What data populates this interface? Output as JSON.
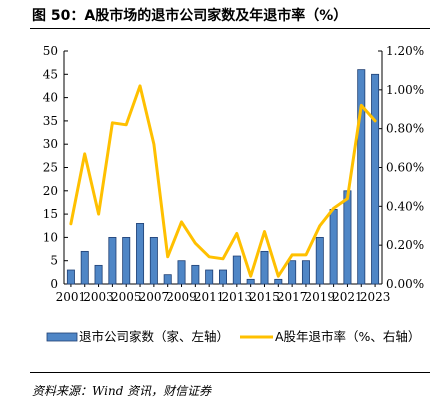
{
  "title": "图 50：A股市场的退市公司家数及年退市率（%）",
  "source": "资料来源：Wind 资讯，财信证券",
  "chart_data": {
    "type": "bar",
    "title": "图 50：A股市场的退市公司家数及年退市率（%）",
    "x": [
      2001,
      2002,
      2003,
      2004,
      2005,
      2006,
      2007,
      2008,
      2009,
      2010,
      2011,
      2012,
      2013,
      2014,
      2015,
      2016,
      2017,
      2018,
      2019,
      2020,
      2021,
      2022,
      2023
    ],
    "x_tick_labels": [
      "2001",
      "2003",
      "2005",
      "2007",
      "2009",
      "2011",
      "2013",
      "2015",
      "2017",
      "2019",
      "2021",
      "2023"
    ],
    "y_left_ticks": [
      "0",
      "5",
      "10",
      "15",
      "20",
      "25",
      "30",
      "35",
      "40",
      "45",
      "50"
    ],
    "y_right_ticks": [
      "0.00%",
      "0.20%",
      "0.40%",
      "0.60%",
      "0.80%",
      "1.00%",
      "1.20%"
    ],
    "ylim_left": [
      0,
      50
    ],
    "ylim_right": [
      0,
      1.2
    ],
    "grid": false,
    "legend_position": "bottom",
    "series": [
      {
        "name": "退市公司家数（家、左轴）",
        "type": "bar",
        "axis": "left",
        "color": "#4f86c6",
        "values": [
          3,
          7,
          4,
          10,
          10,
          13,
          10,
          2,
          5,
          4,
          3,
          3,
          6,
          1,
          7,
          1,
          5,
          5,
          10,
          16,
          20,
          46,
          45
        ]
      },
      {
        "name": "A股年退市率（%、右轴）",
        "type": "line",
        "axis": "right",
        "color": "#ffc000",
        "values": [
          0.31,
          0.67,
          0.36,
          0.83,
          0.82,
          1.02,
          0.72,
          0.14,
          0.32,
          0.21,
          0.14,
          0.13,
          0.26,
          0.04,
          0.27,
          0.04,
          0.15,
          0.15,
          0.3,
          0.39,
          0.44,
          0.92,
          0.84
        ]
      }
    ]
  }
}
